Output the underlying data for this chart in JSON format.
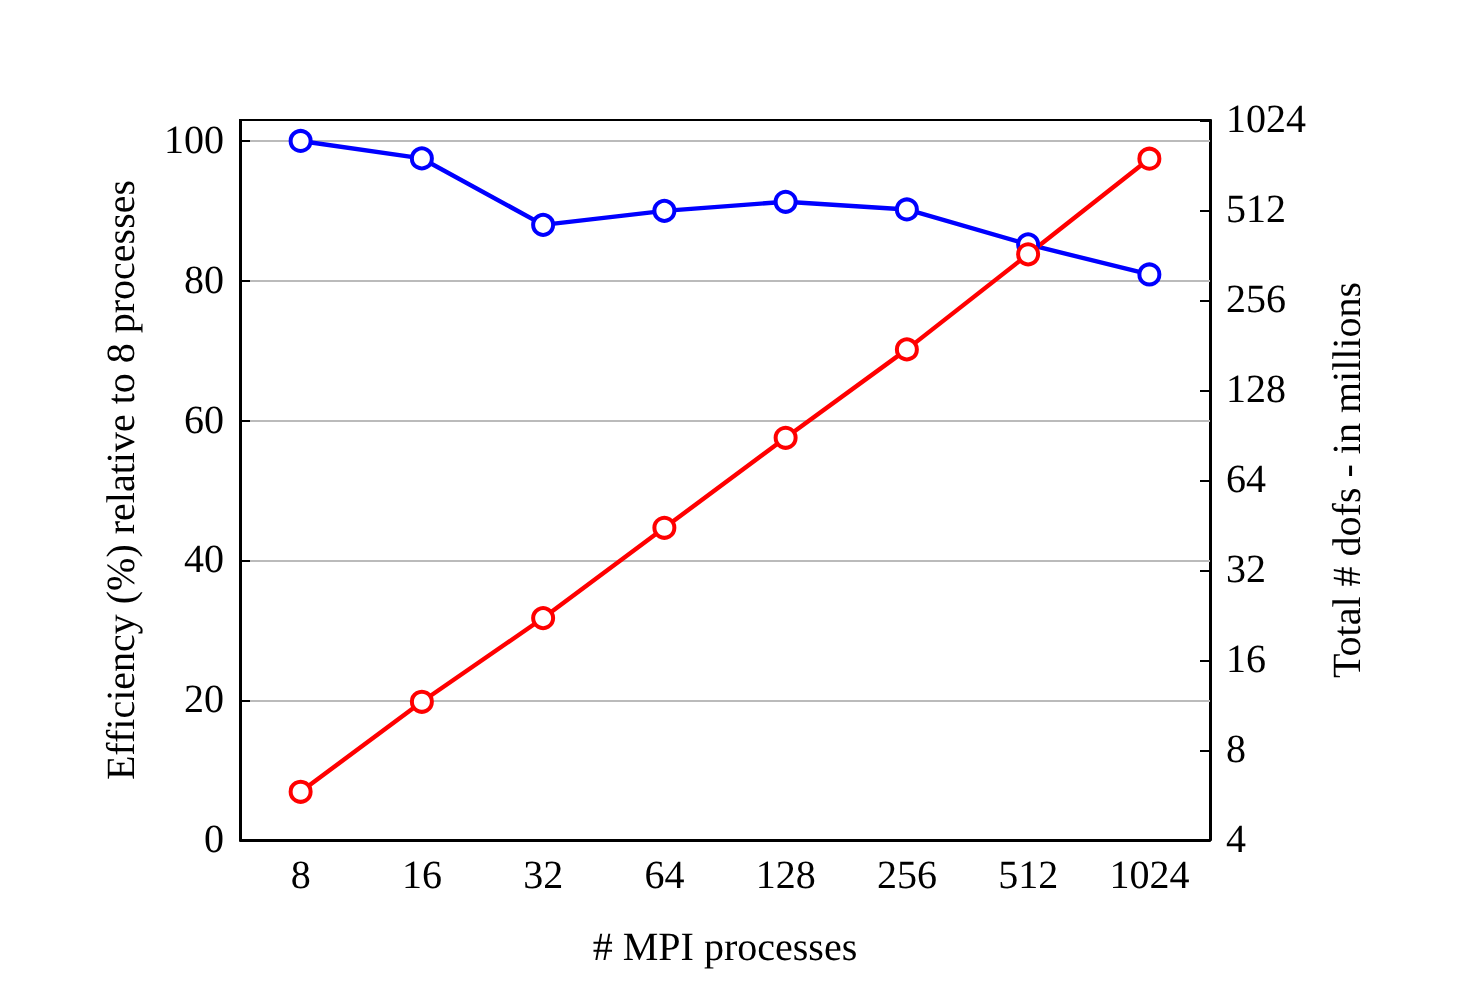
{
  "chart_data": {
    "type": "line",
    "xlabel": "# MPI processes",
    "ylabel": "Efficiency (%) relative to 8 processes",
    "y2label": "Total # dofs - in millions",
    "categories": [
      "8",
      "16",
      "32",
      "64",
      "128",
      "256",
      "512",
      "1024"
    ],
    "series": [
      {
        "color": "#0000ff",
        "values": [
          100,
          97.5,
          88,
          90,
          91.3,
          90.2,
          85.2,
          80.9
        ]
      },
      {
        "color": "#ff0000",
        "axis": "y2",
        "values": [
          5.8,
          11.6,
          22.1,
          44.3,
          88.6,
          175,
          364,
          760
        ]
      }
    ],
    "ylim": [
      0,
      103
    ],
    "yticks": [
      0,
      20,
      40,
      60,
      80,
      100
    ],
    "y2lim": [
      4,
      1024
    ],
    "y2ticks": [
      4,
      8,
      16,
      32,
      64,
      128,
      256,
      512,
      1024
    ],
    "log": "y2",
    "grid": "y",
    "marker": "circle",
    "line_style": "solid"
  }
}
